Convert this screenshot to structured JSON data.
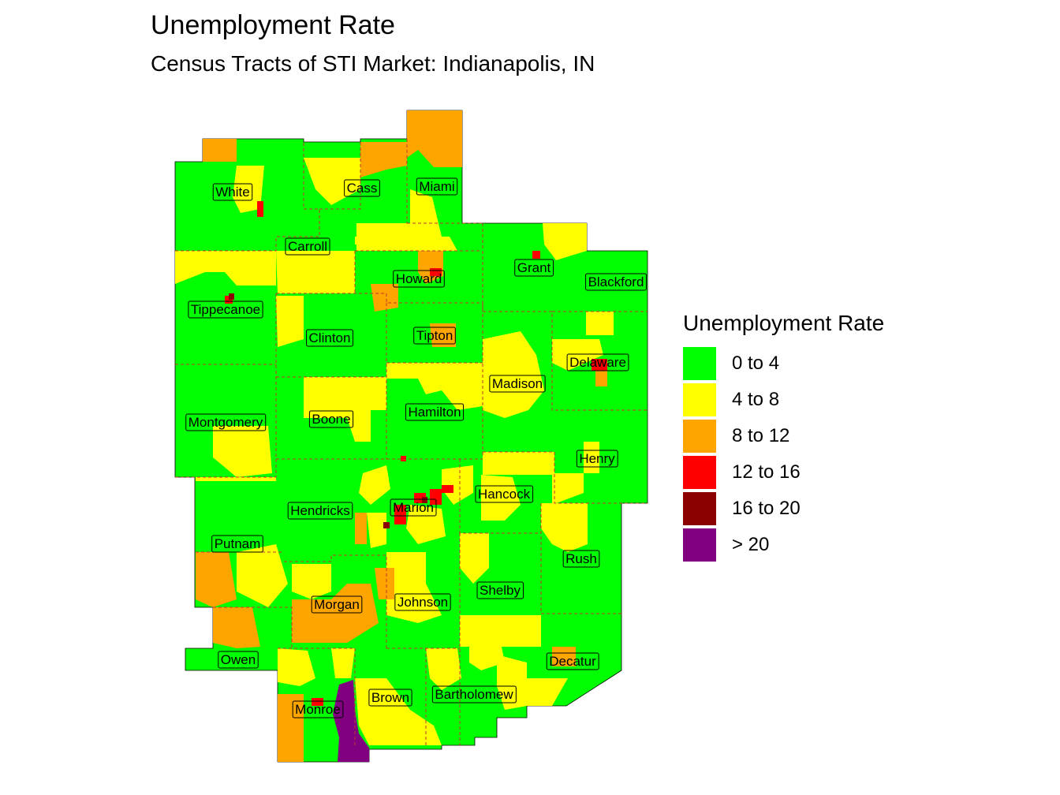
{
  "title": "Unemployment Rate",
  "subtitle": "Census Tracts of STI Market: Indianapolis, IN",
  "legend": {
    "title": "Unemployment Rate",
    "items": [
      {
        "label": "0 to 4",
        "color": "#00ff00"
      },
      {
        "label": "4 to 8",
        "color": "#ffff00"
      },
      {
        "label": "8 to 12",
        "color": "#ffa500"
      },
      {
        "label": "12 to 16",
        "color": "#ff0000"
      },
      {
        "label": "16 to 20",
        "color": "#8b0000"
      },
      {
        "label": "> 20",
        "color": "#800080"
      }
    ]
  },
  "counties": [
    "White",
    "Cass",
    "Miami",
    "Carroll",
    "Grant",
    "Howard",
    "Blackford",
    "Tippecanoe",
    "Clinton",
    "Tipton",
    "Delaware",
    "Madison",
    "Montgomery",
    "Boone",
    "Hamilton",
    "Henry",
    "Hancock",
    "Marion",
    "Hendricks",
    "Putnam",
    "Rush",
    "Shelby",
    "Johnson",
    "Morgan",
    "Owen",
    "Decatur",
    "Bartholomew",
    "Brown",
    "Monroe"
  ]
}
